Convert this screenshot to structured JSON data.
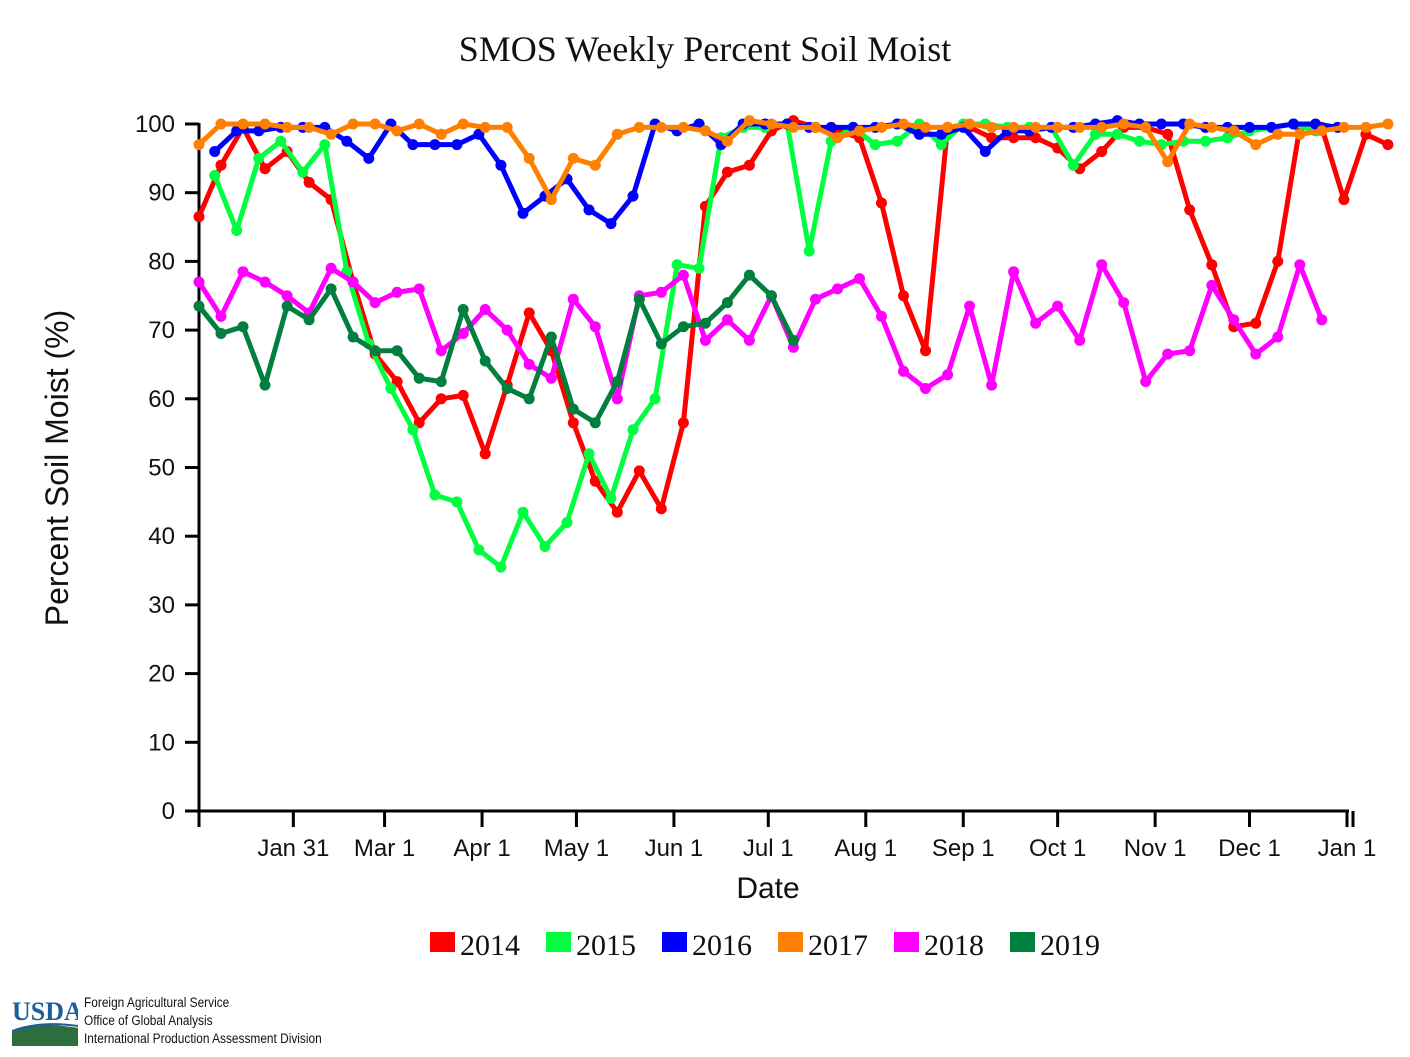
{
  "chart_data": {
    "type": "line",
    "title": "SMOS Weekly Percent Soil Moist",
    "xlabel": "Date",
    "ylabel": "Percent Soil Moist (%)",
    "ylim": [
      0,
      100
    ],
    "yticks": [
      0,
      10,
      20,
      30,
      40,
      50,
      60,
      70,
      80,
      90,
      100
    ],
    "xlim_day": [
      1,
      366
    ],
    "xticks": [
      {
        "label": "Jan 31",
        "day": 31
      },
      {
        "label": "Mar 1",
        "day": 60
      },
      {
        "label": "Apr 1",
        "day": 91
      },
      {
        "label": "May 1",
        "day": 121
      },
      {
        "label": "Jun 1",
        "day": 152
      },
      {
        "label": "Jul 1",
        "day": 182
      },
      {
        "label": "Aug 1",
        "day": 213
      },
      {
        "label": "Sep 1",
        "day": 244
      },
      {
        "label": "Oct 1",
        "day": 274
      },
      {
        "label": "Nov 1",
        "day": 305
      },
      {
        "label": "Dec 1",
        "day": 335
      },
      {
        "label": "Jan 1",
        "day": 366
      }
    ],
    "legend_position": "bottom",
    "series": [
      {
        "name": "2014",
        "color": "#ff0000",
        "start_day": 1,
        "step": 7,
        "values": [
          86.5,
          94,
          99.5,
          93.5,
          96,
          91.5,
          89,
          77,
          66.5,
          62.5,
          56.5,
          60,
          60.5,
          52,
          62,
          72.5,
          67,
          56.5,
          48,
          43.5,
          49.5,
          44,
          56.5,
          88,
          93,
          94,
          99,
          100.5,
          99.5,
          99,
          98,
          88.5,
          75,
          67,
          99.5,
          99.5,
          98,
          98,
          98,
          96.5,
          93.5,
          96,
          99.5,
          99.5,
          98.5,
          87.5,
          79.5,
          70.5,
          71,
          80,
          99.5,
          99.5,
          89,
          98.5,
          97
        ]
      },
      {
        "name": "2015",
        "color": "#00ff40",
        "start_day": 6,
        "step": 7,
        "values": [
          92.5,
          84.5,
          95,
          97.5,
          93,
          97,
          78.5,
          68,
          61.5,
          55.5,
          46,
          45,
          38,
          35.5,
          43.5,
          38.5,
          42,
          52,
          45.5,
          55.5,
          60,
          79.5,
          79,
          98,
          99.5,
          99.5,
          100,
          81.5,
          97.5,
          99.5,
          97,
          97.5,
          100,
          97,
          100,
          100,
          99.5,
          99.5,
          99.5,
          94,
          98.5,
          98.5,
          97.5,
          97,
          97.5,
          97.5,
          98,
          99,
          99.5,
          100,
          99
        ]
      },
      {
        "name": "2016",
        "color": "#0000ff",
        "start_day": 6,
        "step": 7,
        "values": [
          96,
          99,
          99,
          99.5,
          99.5,
          99.5,
          97.5,
          95,
          100,
          97,
          97,
          97,
          98.5,
          94,
          87,
          89.5,
          92,
          87.5,
          85.5,
          89.5,
          100,
          99,
          100,
          97,
          100,
          100,
          100,
          99.5,
          99.5,
          99.5,
          99.5,
          100,
          98.5,
          98.5,
          99.5,
          96,
          99,
          99,
          99.5,
          99.5,
          100,
          100.5,
          100,
          100,
          100,
          99.5,
          99.5,
          99.5,
          99.5,
          100,
          100,
          99.5
        ]
      },
      {
        "name": "2017",
        "color": "#ff8000",
        "start_day": 1,
        "step": 7,
        "values": [
          97,
          100,
          100,
          100,
          99.5,
          99.5,
          98.5,
          100,
          100,
          99,
          100,
          98.5,
          100,
          99.5,
          99.5,
          95,
          89,
          95,
          94,
          98.5,
          99.5,
          99.5,
          99.5,
          99,
          97.5,
          100.5,
          100,
          99.5,
          99.5,
          98,
          99,
          99.5,
          100,
          99.5,
          99.5,
          100,
          99.5,
          99.5,
          99.5,
          99.5,
          99.5,
          99.5,
          100,
          99.5,
          94.5,
          100,
          99.5,
          99,
          97,
          98.5,
          98.5,
          99,
          99.5,
          99.5,
          100
        ]
      },
      {
        "name": "2018",
        "color": "#ff00ff",
        "start_day": 1,
        "step": 7,
        "values": [
          77,
          72,
          78.5,
          77,
          75,
          72.5,
          79,
          77,
          74,
          75.5,
          76,
          67,
          69.5,
          73,
          70,
          65,
          63,
          74.5,
          70.5,
          60,
          75,
          75.5,
          78,
          68.5,
          71.5,
          68.5,
          75,
          67.5,
          74.5,
          76,
          77.5,
          72,
          64,
          61.5,
          63.5,
          73.5,
          62,
          78.5,
          71,
          73.5,
          68.5,
          79.5,
          74,
          62.5,
          66.5,
          67,
          76.5,
          71.5,
          66.5,
          69,
          79.5,
          71.5
        ]
      },
      {
        "name": "2019",
        "color": "#007f3f",
        "start_day": 1,
        "step": 7,
        "values": [
          73.5,
          69.5,
          70.5,
          62,
          73.5,
          71.5,
          76,
          69,
          67,
          67,
          63,
          62.5,
          73,
          65.5,
          61.5,
          60,
          69,
          58.5,
          56.5,
          62.5,
          74.5,
          68,
          70.5,
          71,
          74,
          78,
          75,
          68.5
        ]
      }
    ]
  },
  "footer": {
    "logo_text": "USDA",
    "lines": [
      "Foreign Agricultural Service",
      "Office of Global Analysis",
      "International Production Assessment Division"
    ],
    "logo_color": "#1f5d9a",
    "logo_green": "#2d6e3e"
  }
}
